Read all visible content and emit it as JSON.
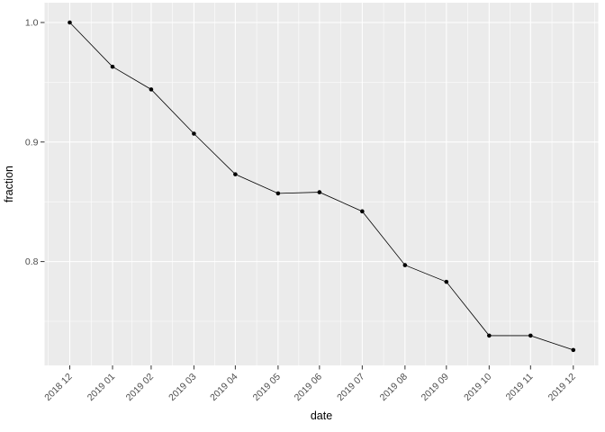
{
  "chart_data": {
    "type": "line",
    "title": "",
    "xlabel": "date",
    "ylabel": "fraction",
    "categories": [
      "2018 12",
      "2019 01",
      "2019 02",
      "2019 03",
      "2019 04",
      "2019 05",
      "2019 06",
      "2019 07",
      "2019 08",
      "2019 09",
      "2019 10",
      "2019 11",
      "2019 12"
    ],
    "x_day_offsets": [
      0,
      31,
      59,
      90,
      120,
      151,
      181,
      212,
      243,
      273,
      304,
      334,
      365
    ],
    "series": [
      {
        "name": "fraction",
        "values": [
          1.0,
          0.963,
          0.944,
          0.907,
          0.873,
          0.857,
          0.858,
          0.842,
          0.797,
          0.783,
          0.738,
          0.738,
          0.726
        ]
      }
    ],
    "y_major_ticks": [
      1.0,
      0.9,
      0.8
    ],
    "y_major_tick_labels": [
      "1.0",
      "0.9",
      "0.8"
    ],
    "y_minor_ticks": [
      0.95,
      0.85,
      0.75
    ],
    "ylim": [
      0.713,
      1.017
    ],
    "grid": "major-and-minor",
    "legend_position": "none",
    "colors": {
      "panel_background": "#ebebeb",
      "gridline": "#ffffff",
      "line": "#000000",
      "point": "#000000",
      "tick_label": "#4d4d4d",
      "axis_title": "#000000",
      "tick_mark": "#333333",
      "figure_background": "#ffffff"
    }
  }
}
